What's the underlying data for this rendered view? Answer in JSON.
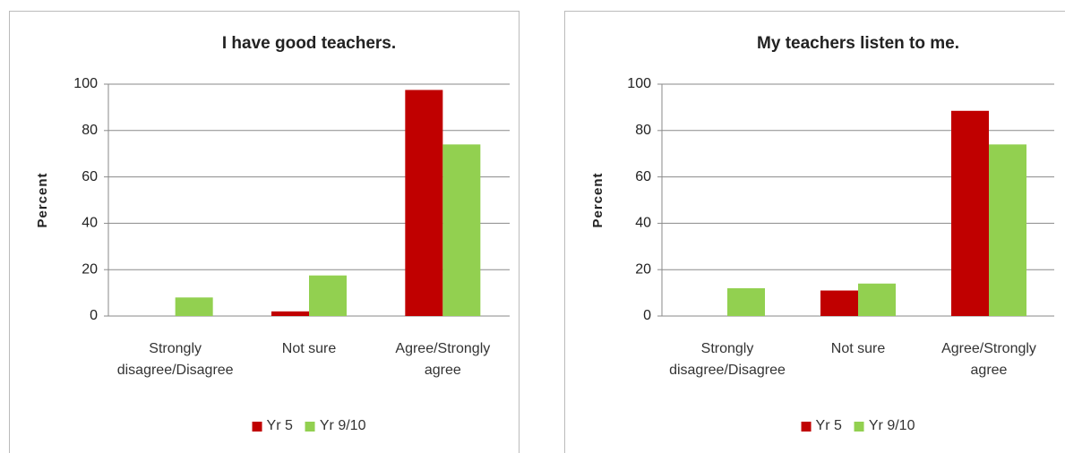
{
  "chart_data": [
    {
      "type": "bar",
      "title": "I have good teachers.",
      "y_label": "Percent",
      "categories": [
        "Strongly disagree/Disagree",
        "Not sure",
        "Agree/Strongly agree"
      ],
      "series": [
        {
          "name": "Yr 5",
          "color": "#c00000",
          "values": [
            0,
            2,
            97.5
          ]
        },
        {
          "name": "Yr 9/10",
          "color": "#92d050",
          "values": [
            8,
            17.5,
            74
          ]
        }
      ],
      "ylim": [
        0,
        100
      ],
      "yticks": [
        0,
        20,
        40,
        60,
        80,
        100
      ],
      "grid": true,
      "legend": "bottom"
    },
    {
      "type": "bar",
      "title": "My teachers listen to me.",
      "y_label": "Percent",
      "categories": [
        "Strongly disagree/Disagree",
        "Not sure",
        "Agree/Strongly agree"
      ],
      "series": [
        {
          "name": "Yr 5",
          "color": "#c00000",
          "values": [
            0,
            11,
            88.5
          ]
        },
        {
          "name": "Yr 9/10",
          "color": "#92d050",
          "values": [
            12,
            14,
            74
          ]
        }
      ],
      "ylim": [
        0,
        100
      ],
      "yticks": [
        0,
        20,
        40,
        60,
        80,
        100
      ],
      "grid": true,
      "legend": "bottom"
    }
  ]
}
